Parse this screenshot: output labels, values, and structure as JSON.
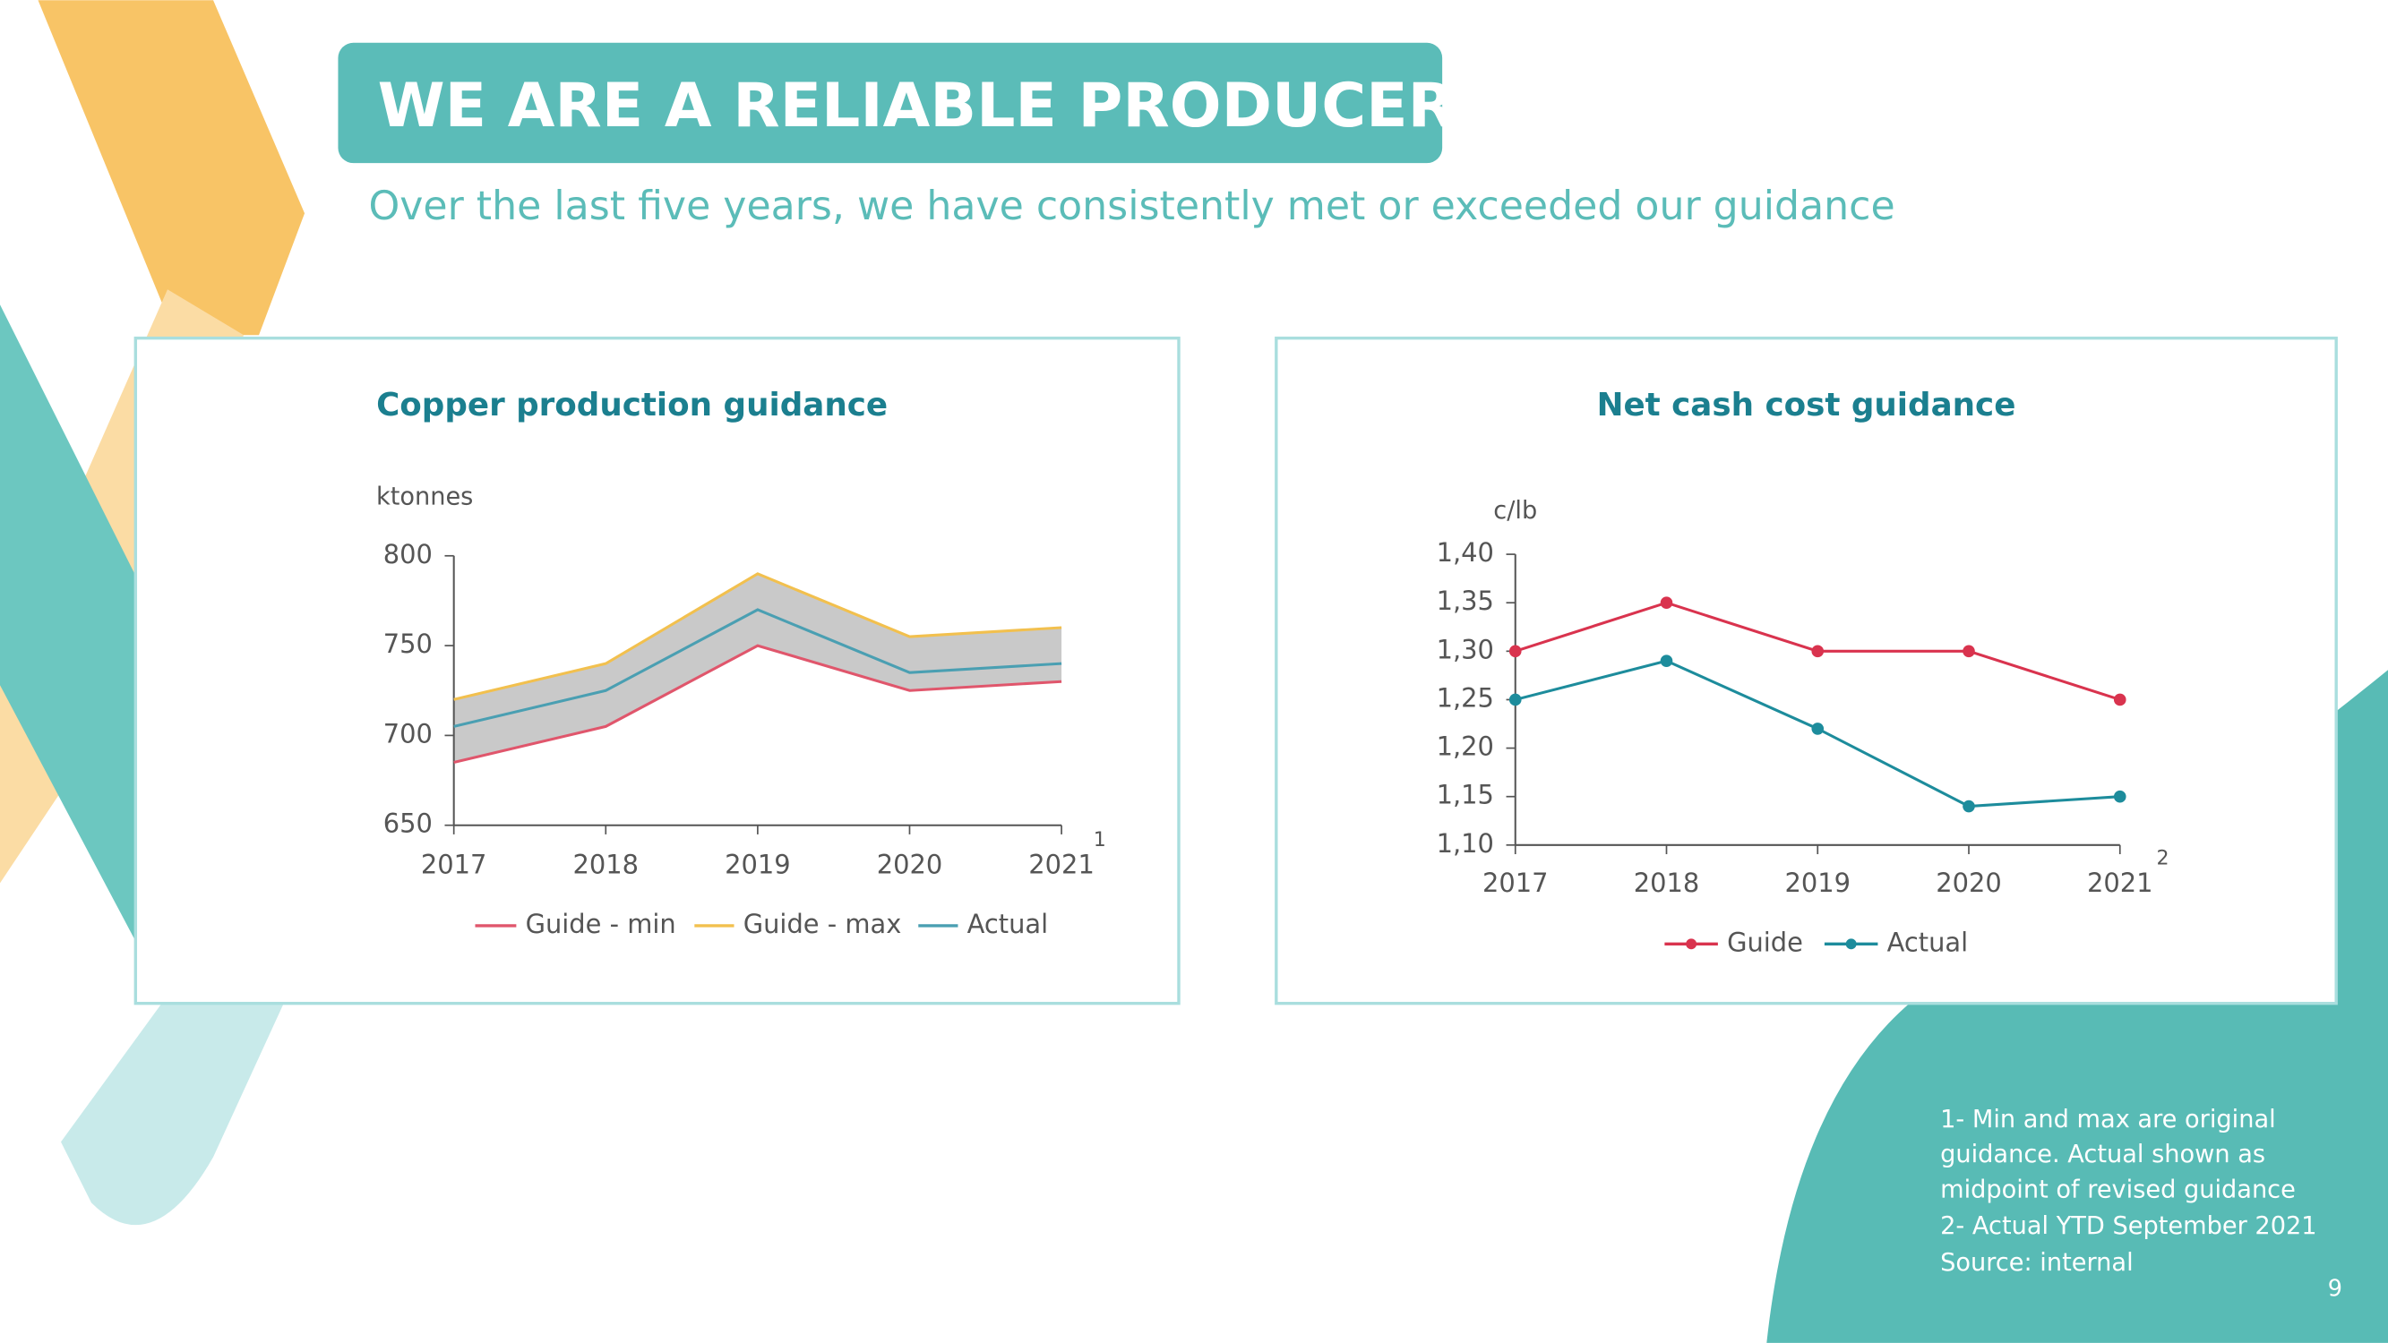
{
  "slide": {
    "title": "WE ARE A RELIABLE PRODUCER",
    "subtitle": "Over the last five years, we have consistently met or exceeded our guidance",
    "notes": [
      "1- Min and max are original",
      "guidance. Actual shown as",
      "midpoint of revised guidance",
      "2- Actual YTD September 2021",
      "Source: internal"
    ],
    "page_number": "9"
  },
  "chart_data": [
    {
      "type": "line",
      "title": "Copper production guidance",
      "y_label": "ktonnes",
      "axis_note": "1",
      "categories": [
        "2017",
        "2018",
        "2019",
        "2020",
        "2021"
      ],
      "series": [
        {
          "name": "Guide - min",
          "color": "#e0566c",
          "values": [
            685,
            705,
            750,
            725,
            730
          ]
        },
        {
          "name": "Guide - max",
          "color": "#f2c04e",
          "values": [
            720,
            740,
            790,
            755,
            760
          ]
        },
        {
          "name": "Actual",
          "color": "#4a9fb2",
          "values": [
            705,
            725,
            770,
            735,
            740
          ]
        }
      ],
      "band": true,
      "band_color": "#c9c9c9",
      "markers": false,
      "ylim": [
        650,
        800
      ],
      "yticks": [
        650,
        700,
        750,
        800
      ]
    },
    {
      "type": "line",
      "title": "Net cash cost guidance",
      "y_label": "c/lb",
      "axis_note": "2",
      "categories": [
        "2017",
        "2018",
        "2019",
        "2020",
        "2021"
      ],
      "series": [
        {
          "name": "Guide",
          "color": "#d9334e",
          "values": [
            1.3,
            1.35,
            1.3,
            1.3,
            1.25
          ]
        },
        {
          "name": "Actual",
          "color": "#1d8c9c",
          "values": [
            1.25,
            1.29,
            1.22,
            1.14,
            1.15
          ]
        }
      ],
      "band": false,
      "markers": true,
      "ylim": [
        1.1,
        1.4
      ],
      "yticks": [
        {
          "value": 1.1,
          "label": "1,10"
        },
        {
          "value": 1.15,
          "label": "1,15"
        },
        {
          "value": 1.2,
          "label": "1,20"
        },
        {
          "value": 1.25,
          "label": "1,25"
        },
        {
          "value": 1.3,
          "label": "1,30"
        },
        {
          "value": 1.35,
          "label": "1,35"
        },
        {
          "value": 1.4,
          "label": "1,40"
        }
      ]
    }
  ]
}
